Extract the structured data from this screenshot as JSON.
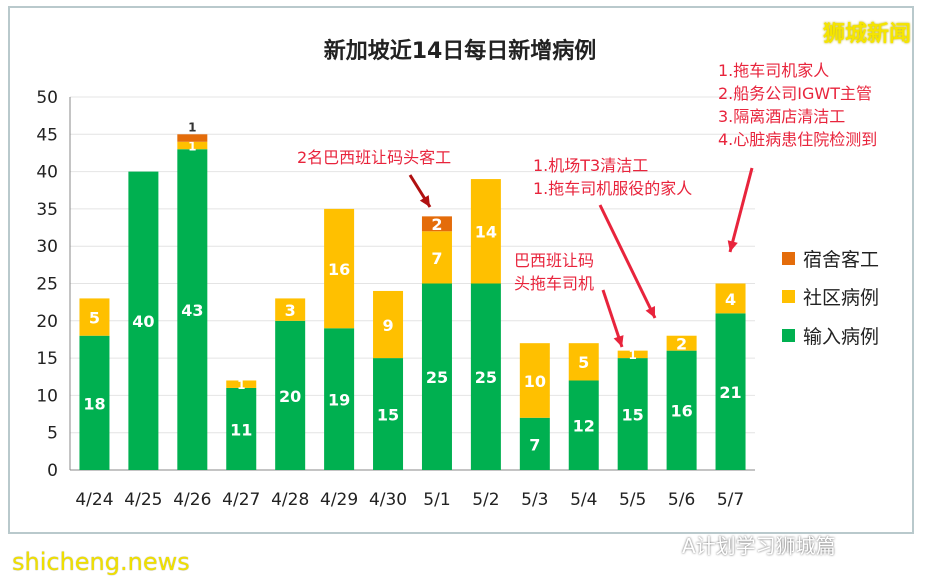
{
  "brand": "狮城新闻",
  "watermark": "shicheng.news",
  "source_tag": "A计划学习狮城篇",
  "annotations": [
    "2名巴西班让码头客工",
    "1.机场T3清洁工\n1.拖车司机服役的家人",
    "巴西班让码\n头拖车司机",
    "1.拖车司机家人\n2.船务公司IGWT主管\n3.隔离酒店清洁工\n4.心脏病患住院检测到"
  ],
  "colors": {
    "imported": "#00b050",
    "community": "#ffc000",
    "dorm": "#e46c0a",
    "annotation": "#e8243c"
  },
  "chart_data": {
    "type": "bar",
    "stacked": true,
    "title": "新加坡近14日每日新增病例",
    "categories": [
      "4/24",
      "4/25",
      "4/26",
      "4/27",
      "4/28",
      "4/29",
      "4/30",
      "5/1",
      "5/2",
      "5/3",
      "5/4",
      "5/5",
      "5/6",
      "5/7"
    ],
    "series": [
      {
        "name": "输入病例",
        "values": [
          18,
          40,
          43,
          11,
          20,
          19,
          15,
          25,
          25,
          7,
          12,
          15,
          16,
          21
        ]
      },
      {
        "name": "社区病例",
        "values": [
          5,
          0,
          1,
          1,
          3,
          16,
          9,
          7,
          14,
          10,
          5,
          1,
          2,
          4
        ]
      },
      {
        "name": "宿舍客工",
        "values": [
          0,
          0,
          1,
          0,
          0,
          0,
          0,
          2,
          0,
          0,
          0,
          0,
          0,
          0
        ]
      }
    ],
    "yticks": [
      0,
      5,
      10,
      15,
      20,
      25,
      30,
      35,
      40,
      45,
      50
    ],
    "ylim": [
      0,
      50
    ],
    "grid": true,
    "legend": "right"
  }
}
